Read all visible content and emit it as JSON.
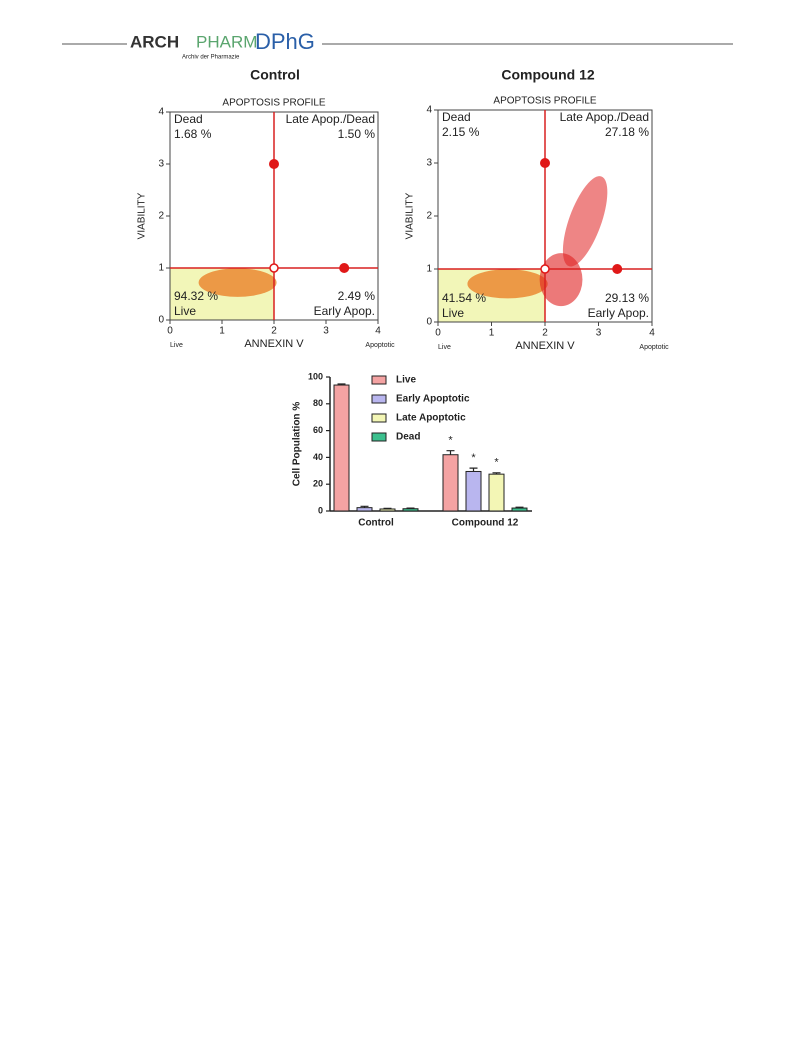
{
  "header": {
    "logo_arch": "ARCH",
    "logo_pharm": "PHARM",
    "logo_dphg": "DPhG",
    "logo_subtitle": "Archiv der Pharmazie"
  },
  "chart_data": [
    {
      "type": "scatter",
      "title": "Control",
      "subtitle": "APOPTOSIS PROFILE",
      "xlabel": "ANNEXIN V",
      "ylabel": "VIABILITY",
      "x_left_note": "Live",
      "x_right_note": "Apoptotic",
      "xlim": [
        0,
        4
      ],
      "ylim": [
        0,
        4
      ],
      "xticks": [
        0,
        1,
        2,
        3,
        4
      ],
      "yticks": [
        0,
        1,
        2,
        3,
        4
      ],
      "gate_x": 2,
      "gate_y": 1,
      "gate_handles": [
        {
          "x": 2,
          "y": 3
        },
        {
          "x": 3.35,
          "y": 1
        }
      ],
      "color": "#e8731e",
      "quadrants": {
        "top_left": [
          "Dead",
          "1.68 %"
        ],
        "top_right": [
          "Late Apop./Dead",
          "1.50 %"
        ],
        "bottom_left": [
          "94.32 %",
          "Live"
        ],
        "bottom_right": [
          "2.49 %",
          "Early Apop."
        ]
      }
    },
    {
      "type": "scatter",
      "title": "Compound 12",
      "subtitle": "APOPTOSIS PROFILE",
      "xlabel": "ANNEXIN V",
      "ylabel": "VIABILITY",
      "x_left_note": "Live",
      "x_right_note": "Apoptotic",
      "xlim": [
        0,
        4
      ],
      "ylim": [
        0,
        4
      ],
      "xticks": [
        0,
        1,
        2,
        3,
        4
      ],
      "yticks": [
        0,
        1,
        2,
        3,
        4
      ],
      "gate_x": 2,
      "gate_y": 1,
      "gate_handles": [
        {
          "x": 2,
          "y": 3
        },
        {
          "x": 3.35,
          "y": 1
        }
      ],
      "color": "#e02020",
      "quadrants": {
        "top_left": [
          "Dead",
          "2.15 %"
        ],
        "top_right": [
          "Late Apop./Dead",
          "27.18 %"
        ],
        "bottom_left": [
          "41.54 %",
          "Live"
        ],
        "bottom_right": [
          "29.13 %",
          "Early Apop."
        ]
      }
    },
    {
      "type": "bar",
      "ylabel": "Cell Population %",
      "categories": [
        "Control",
        "Compound 12"
      ],
      "ylim": [
        0,
        100
      ],
      "yticks": [
        0,
        20,
        40,
        60,
        80,
        100
      ],
      "series": [
        {
          "name": "Live",
          "color": "#f4a3a3",
          "values": [
            94,
            42
          ],
          "errors": [
            0.8,
            3
          ],
          "labels": [
            null,
            "*"
          ]
        },
        {
          "name": "Early Apoptotic",
          "color": "#b9b6ef",
          "values": [
            2.5,
            29.5
          ],
          "errors": [
            1,
            2.5
          ],
          "labels": [
            null,
            "*"
          ]
        },
        {
          "name": "Late Apoptotic",
          "color": "#f3f6b5",
          "values": [
            1.5,
            27.5
          ],
          "errors": [
            0.5,
            1
          ],
          "labels": [
            null,
            "*"
          ]
        },
        {
          "name": "Dead",
          "color": "#3cc08e",
          "values": [
            1.7,
            2.2
          ],
          "errors": [
            0.5,
            0.6
          ],
          "labels": [
            null,
            null
          ]
        }
      ]
    }
  ]
}
